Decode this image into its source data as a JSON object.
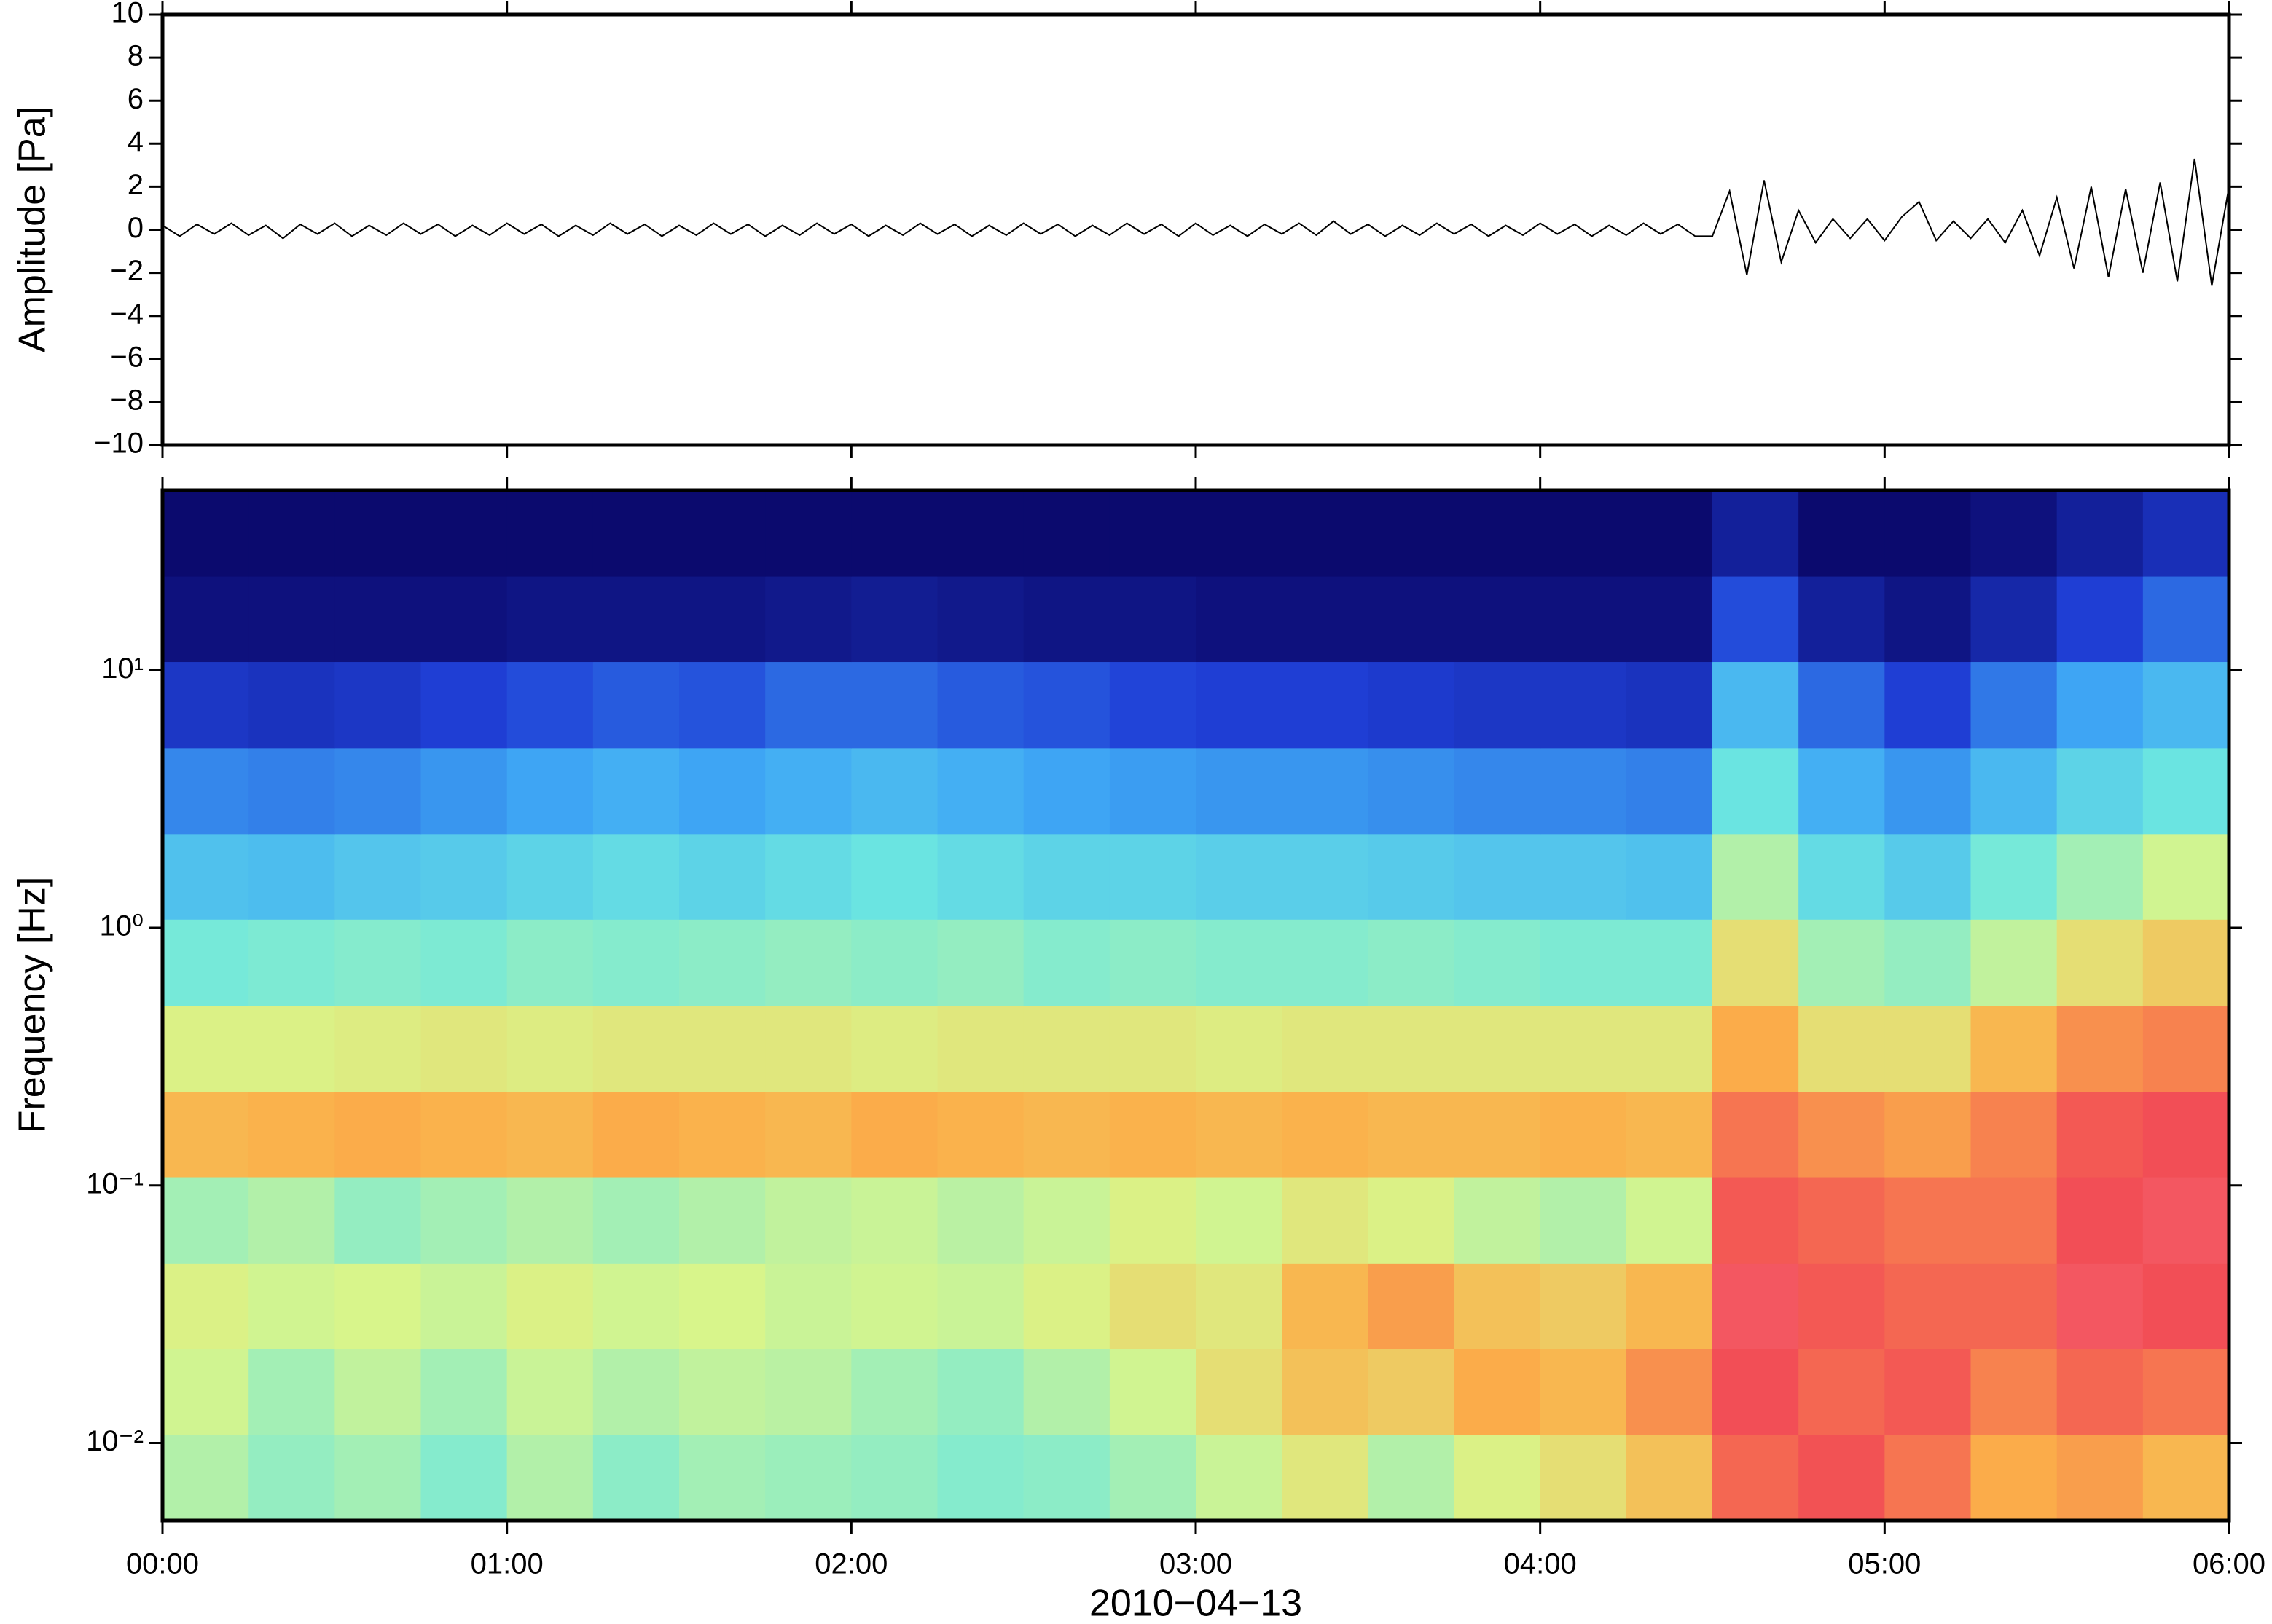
{
  "chart_data": [
    {
      "type": "line",
      "ylabel": "Amplitude [Pa]",
      "color": "#000000",
      "xlim": [
        0,
        6
      ],
      "ylim": [
        -10,
        10
      ],
      "yticks": [
        {
          "value": -10,
          "label": "−10"
        },
        {
          "value": -8,
          "label": "−8"
        },
        {
          "value": -6,
          "label": "−6"
        },
        {
          "value": -4,
          "label": "−4"
        },
        {
          "value": -2,
          "label": "−2"
        },
        0,
        2,
        4,
        6,
        8,
        10
      ],
      "x": [
        0,
        0.05,
        0.1,
        0.15,
        0.2,
        0.25,
        0.3,
        0.35,
        0.4,
        0.45,
        0.5,
        0.55,
        0.6,
        0.65,
        0.7,
        0.75,
        0.8,
        0.85,
        0.9,
        0.95,
        1,
        1.05,
        1.1,
        1.15,
        1.2,
        1.25,
        1.3,
        1.35,
        1.4,
        1.45,
        1.5,
        1.55,
        1.6,
        1.65,
        1.7,
        1.75,
        1.8,
        1.85,
        1.9,
        1.95,
        2,
        2.05,
        2.1,
        2.15,
        2.2,
        2.25,
        2.3,
        2.35,
        2.4,
        2.45,
        2.5,
        2.55,
        2.6,
        2.65,
        2.7,
        2.75,
        2.8,
        2.85,
        2.9,
        2.95,
        3,
        3.05,
        3.1,
        3.15,
        3.2,
        3.25,
        3.3,
        3.35,
        3.4,
        3.45,
        3.5,
        3.55,
        3.6,
        3.65,
        3.7,
        3.75,
        3.8,
        3.85,
        3.9,
        3.95,
        4,
        4.05,
        4.1,
        4.15,
        4.2,
        4.25,
        4.3,
        4.35,
        4.4,
        4.45,
        4.5,
        4.55,
        4.6,
        4.65,
        4.7,
        4.75,
        4.8,
        4.85,
        4.9,
        4.95,
        5,
        5.05,
        5.1,
        5.15,
        5.2,
        5.25,
        5.3,
        5.35,
        5.4,
        5.45,
        5.5,
        5.55,
        5.6,
        5.65,
        5.7,
        5.75,
        5.8,
        5.85,
        5.9,
        5.95,
        6
      ],
      "values": [
        0.2,
        -0.3,
        0.25,
        -0.2,
        0.3,
        -0.25,
        0.2,
        -0.4,
        0.25,
        -0.2,
        0.3,
        -0.3,
        0.2,
        -0.25,
        0.3,
        -0.2,
        0.25,
        -0.3,
        0.2,
        -0.25,
        0.3,
        -0.2,
        0.25,
        -0.3,
        0.2,
        -0.25,
        0.3,
        -0.2,
        0.25,
        -0.3,
        0.2,
        -0.25,
        0.3,
        -0.2,
        0.25,
        -0.3,
        0.2,
        -0.25,
        0.3,
        -0.2,
        0.25,
        -0.3,
        0.2,
        -0.25,
        0.3,
        -0.2,
        0.25,
        -0.3,
        0.2,
        -0.25,
        0.3,
        -0.2,
        0.25,
        -0.3,
        0.2,
        -0.25,
        0.3,
        -0.2,
        0.25,
        -0.3,
        0.3,
        -0.25,
        0.2,
        -0.3,
        0.25,
        -0.2,
        0.3,
        -0.25,
        0.4,
        -0.2,
        0.25,
        -0.3,
        0.2,
        -0.25,
        0.3,
        -0.2,
        0.25,
        -0.3,
        0.2,
        -0.25,
        0.3,
        -0.2,
        0.25,
        -0.3,
        0.2,
        -0.25,
        0.3,
        -0.2,
        0.25,
        -0.3,
        -0.3,
        1.8,
        -2.1,
        2.3,
        -1.5,
        0.9,
        -0.6,
        0.5,
        -0.4,
        0.5,
        -0.5,
        0.6,
        1.3,
        -0.5,
        0.4,
        -0.4,
        0.5,
        -0.6,
        0.9,
        -1.2,
        1.5,
        -1.8,
        2.0,
        -2.2,
        1.9,
        -2.0,
        2.2,
        -2.4,
        3.3,
        -2.6,
        2.0
      ]
    },
    {
      "type": "heatmap",
      "ylabel": "Frequency [Hz]",
      "xlabel": "2010−04−13",
      "xlim": [
        0,
        6
      ],
      "xticks": [
        {
          "value": 0,
          "label": "00:00"
        },
        {
          "value": 1,
          "label": "01:00"
        },
        {
          "value": 2,
          "label": "02:00"
        },
        {
          "value": 3,
          "label": "03:00"
        },
        {
          "value": 4,
          "label": "04:00"
        },
        {
          "value": 5,
          "label": "05:00"
        },
        {
          "value": 6,
          "label": "06:00"
        }
      ],
      "ylim": [
        0.005,
        50
      ],
      "ylog": true,
      "yticks": [
        {
          "value": 0.01,
          "label": "10⁻²"
        },
        {
          "value": 0.1,
          "label": "10⁻¹"
        },
        {
          "value": 1,
          "label": "10⁰"
        },
        {
          "value": 10,
          "label": "10¹"
        }
      ],
      "zlim": [
        0,
        100
      ],
      "colormap": [
        "#0b0a6e",
        "#1f3fd6",
        "#3fa9f5",
        "#6de8e0",
        "#d9f58a",
        "#fbb04a",
        "#f24d55",
        "#fa8aa0"
      ],
      "xbins": [
        0,
        0.25,
        0.5,
        0.75,
        1,
        1.25,
        1.5,
        1.75,
        2,
        2.25,
        2.5,
        2.75,
        3,
        3.25,
        3.5,
        3.75,
        4,
        4.25,
        4.5,
        4.75,
        5,
        5.25,
        5.5,
        5.75,
        6
      ],
      "ybins": [
        0.005,
        0.0108,
        0.0232,
        0.05,
        0.108,
        0.232,
        0.5,
        1.08,
        2.32,
        5,
        10.8,
        23.2,
        50
      ],
      "z": [
        [
          52,
          48,
          50,
          46,
          52,
          47,
          50,
          49,
          48,
          46,
          47,
          50,
          55,
          60,
          52,
          58,
          62,
          68,
          82,
          85,
          80,
          72,
          74,
          70
        ],
        [
          56,
          50,
          54,
          50,
          55,
          52,
          54,
          53,
          50,
          48,
          52,
          56,
          62,
          68,
          66,
          72,
          70,
          76,
          86,
          82,
          84,
          78,
          82,
          80
        ],
        [
          58,
          56,
          57,
          55,
          58,
          56,
          57,
          55,
          56,
          55,
          58,
          62,
          60,
          70,
          74,
          68,
          66,
          70,
          88,
          84,
          82,
          82,
          88,
          86
        ],
        [
          50,
          52,
          48,
          50,
          52,
          50,
          52,
          54,
          55,
          53,
          55,
          58,
          56,
          60,
          58,
          54,
          52,
          56,
          84,
          82,
          80,
          80,
          86,
          88
        ],
        [
          70,
          71,
          72,
          71,
          70,
          72,
          71,
          70,
          72,
          71,
          70,
          71,
          70,
          71,
          70,
          70,
          71,
          70,
          80,
          76,
          74,
          78,
          84,
          86
        ],
        [
          58,
          58,
          59,
          60,
          59,
          60,
          60,
          60,
          59,
          60,
          60,
          60,
          59,
          60,
          60,
          60,
          60,
          60,
          72,
          62,
          62,
          70,
          76,
          78
        ],
        [
          44,
          45,
          46,
          45,
          47,
          46,
          47,
          48,
          47,
          48,
          46,
          47,
          46,
          46,
          47,
          46,
          45,
          45,
          62,
          50,
          48,
          54,
          62,
          66
        ],
        [
          34,
          33,
          35,
          36,
          38,
          40,
          38,
          40,
          42,
          40,
          38,
          38,
          37,
          37,
          36,
          35,
          35,
          34,
          52,
          40,
          36,
          44,
          50,
          56
        ],
        [
          24,
          23,
          24,
          26,
          28,
          30,
          28,
          30,
          32,
          30,
          28,
          27,
          26,
          26,
          25,
          24,
          24,
          23,
          42,
          30,
          26,
          32,
          38,
          42
        ],
        [
          12,
          11,
          12,
          14,
          16,
          18,
          17,
          20,
          20,
          18,
          17,
          15,
          14,
          14,
          13,
          12,
          12,
          11,
          32,
          20,
          14,
          22,
          28,
          32
        ],
        [
          2,
          2,
          2,
          2,
          3,
          3,
          3,
          4,
          5,
          4,
          3,
          3,
          2,
          2,
          2,
          2,
          2,
          2,
          16,
          6,
          3,
          8,
          14,
          20
        ],
        [
          0,
          0,
          0,
          0,
          0,
          0,
          0,
          0,
          0,
          0,
          0,
          0,
          0,
          0,
          0,
          0,
          0,
          0,
          6,
          0,
          0,
          2,
          6,
          10
        ]
      ]
    }
  ]
}
